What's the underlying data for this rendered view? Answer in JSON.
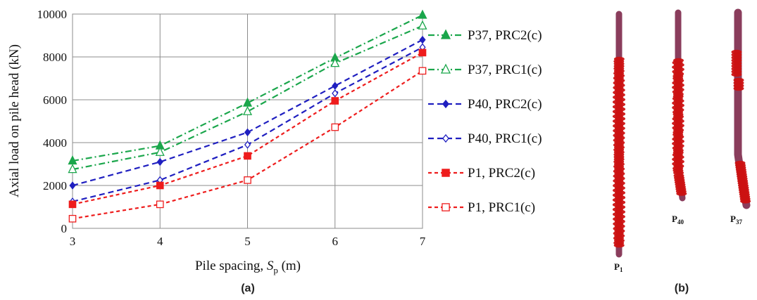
{
  "chart_data": {
    "type": "line",
    "xlabel_text": "Pile spacing, ",
    "xlabel_symbol": "S",
    "xlabel_sub": "p",
    "xlabel_unit": " (m)",
    "ylabel": "Axial load on pile head (kN)",
    "x": [
      3,
      4,
      5,
      6,
      7
    ],
    "xlim": [
      3,
      7
    ],
    "ylim": [
      0,
      10000
    ],
    "xticks": [
      "3",
      "4",
      "5",
      "6",
      "7"
    ],
    "yticks": [
      "0",
      "2000",
      "4000",
      "6000",
      "8000",
      "10000"
    ],
    "grid": true,
    "legend_position": "right",
    "series": [
      {
        "name": "P37, PRC2(c)",
        "values": [
          3150,
          3850,
          5850,
          7950,
          9950
        ],
        "color": "#1aa64b",
        "dash": "dashdot",
        "marker": "triangle",
        "filled": true
      },
      {
        "name": "P37, PRC1(c)",
        "values": [
          2750,
          3550,
          5450,
          7700,
          9450
        ],
        "color": "#1aa64b",
        "dash": "dashdot",
        "marker": "triangle",
        "filled": false
      },
      {
        "name": "P40, PRC2(c)",
        "values": [
          2000,
          3100,
          4480,
          6650,
          8800
        ],
        "color": "#1f1fc0",
        "dash": "dash",
        "marker": "diamond",
        "filled": true
      },
      {
        "name": "P40, PRC1(c)",
        "values": [
          1250,
          2250,
          3900,
          6300,
          8450
        ],
        "color": "#1f1fc0",
        "dash": "dash",
        "marker": "diamond",
        "filled": false
      },
      {
        "name": "P1, PRC2(c)",
        "values": [
          1120,
          2000,
          3380,
          5950,
          8200
        ],
        "color": "#ee1c1c",
        "dash": "shortdash",
        "marker": "square",
        "filled": true
      },
      {
        "name": "P1, PRC1(c)",
        "values": [
          450,
          1120,
          2250,
          4720,
          7350
        ],
        "color": "#ee1c1c",
        "dash": "shortdash",
        "marker": "square",
        "filled": false
      }
    ]
  },
  "panels": {
    "a": "(a)",
    "b": "(b)"
  },
  "piles": [
    {
      "label": "P",
      "sub": "1"
    },
    {
      "label": "P",
      "sub": "40"
    },
    {
      "label": "P",
      "sub": "37"
    }
  ],
  "colors": {
    "pile_body": "#8a3d5c",
    "plastic_hinge": "#cc1111"
  }
}
